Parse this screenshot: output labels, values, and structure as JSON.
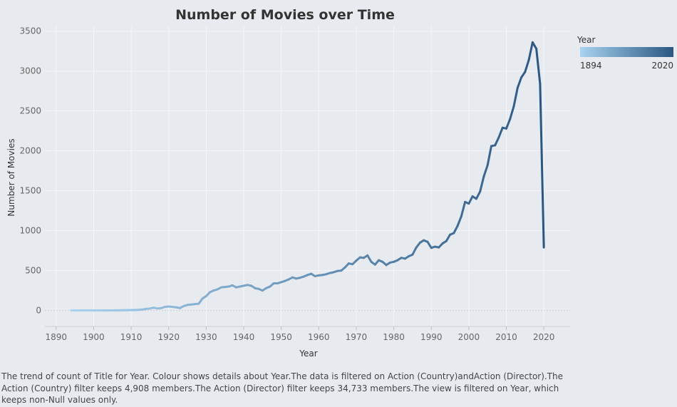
{
  "chart_data": {
    "type": "line",
    "title": "Number of Movies over Time",
    "xlabel": "Year",
    "ylabel": "Number of Movies",
    "x_ticks": [
      "1890",
      "1900",
      "1910",
      "1920",
      "1930",
      "1940",
      "1950",
      "1960",
      "1970",
      "1980",
      "1990",
      "2000",
      "2010",
      "2020"
    ],
    "y_ticks": [
      "0",
      "500",
      "1000",
      "1500",
      "2000",
      "2500",
      "3000",
      "3500"
    ],
    "xlim": [
      1887,
      2027
    ],
    "ylim": [
      -200,
      3560
    ],
    "grid": true,
    "legend": {
      "title": "Year",
      "min_label": "1894",
      "max_label": "2020",
      "placement": "top-right"
    },
    "color_start": "#a8d2ef",
    "color_end": "#2a5782",
    "series": [
      {
        "x": [
          1894,
          1895,
          1896,
          1897,
          1898,
          1899,
          1900,
          1901,
          1902,
          1903,
          1904,
          1905,
          1906,
          1907,
          1908,
          1909,
          1910,
          1911,
          1912,
          1913,
          1914,
          1915,
          1916,
          1917,
          1918,
          1919,
          1920,
          1921,
          1922,
          1923,
          1924,
          1925,
          1926,
          1927,
          1928,
          1929,
          1930,
          1931,
          1932,
          1933,
          1934,
          1935,
          1936,
          1937,
          1938,
          1939,
          1940,
          1941,
          1942,
          1943,
          1944,
          1945,
          1946,
          1947,
          1948,
          1949,
          1950,
          1951,
          1952,
          1953,
          1954,
          1955,
          1956,
          1957,
          1958,
          1959,
          1960,
          1961,
          1962,
          1963,
          1964,
          1965,
          1966,
          1967,
          1968,
          1969,
          1970,
          1971,
          1972,
          1973,
          1974,
          1975,
          1976,
          1977,
          1978,
          1979,
          1980,
          1981,
          1982,
          1983,
          1984,
          1985,
          1986,
          1987,
          1988,
          1989,
          1990,
          1991,
          1992,
          1993,
          1994,
          1995,
          1996,
          1997,
          1998,
          1999,
          2000,
          2001,
          2002,
          2003,
          2004,
          2005,
          2006,
          2007,
          2008,
          2009,
          2010,
          2011,
          2012,
          2013,
          2014,
          2015,
          2016,
          2017,
          2018,
          2019,
          2020
        ],
        "y": [
          1,
          1,
          1,
          1,
          1,
          1,
          1,
          1,
          1,
          1,
          1,
          1,
          2,
          2,
          3,
          4,
          5,
          6,
          8,
          12,
          20,
          25,
          35,
          25,
          30,
          45,
          50,
          45,
          40,
          30,
          55,
          70,
          75,
          80,
          85,
          150,
          180,
          230,
          250,
          265,
          290,
          295,
          300,
          315,
          290,
          300,
          310,
          320,
          310,
          280,
          270,
          250,
          280,
          300,
          340,
          340,
          355,
          370,
          390,
          415,
          400,
          410,
          425,
          445,
          460,
          430,
          440,
          445,
          455,
          470,
          480,
          495,
          500,
          540,
          590,
          580,
          625,
          665,
          660,
          690,
          610,
          575,
          630,
          610,
          570,
          600,
          610,
          630,
          660,
          650,
          680,
          700,
          790,
          850,
          880,
          860,
          785,
          800,
          790,
          840,
          870,
          950,
          970,
          1060,
          1180,
          1360,
          1340,
          1430,
          1400,
          1490,
          1680,
          1820,
          2060,
          2070,
          2170,
          2290,
          2280,
          2400,
          2560,
          2790,
          2920,
          2990,
          3140,
          3360,
          3280,
          2840,
          790
        ]
      }
    ]
  },
  "caption": "The trend of count of Title for Year. Colour shows details about Year.The data is filtered on Action (Country)andAction (Director).The Action (Country) filter keeps 4,908 members.The Action (Director) filter keeps 34,733 members.The view is filtered on Year, which keeps non-Null values only."
}
